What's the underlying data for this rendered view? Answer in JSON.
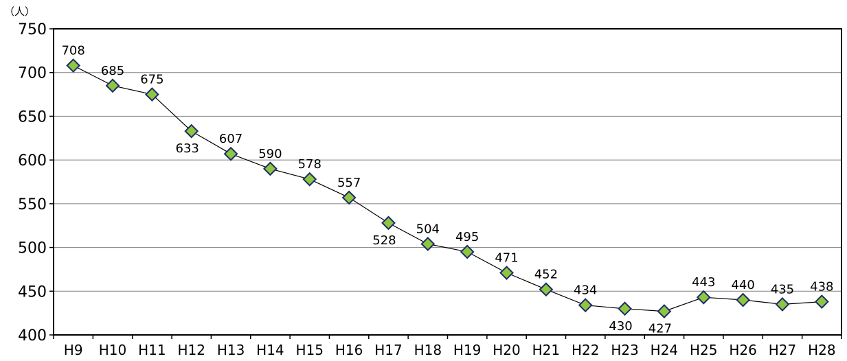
{
  "chart_data": {
    "type": "line",
    "unit_label": "（人）",
    "categories": [
      "H9",
      "H10",
      "H11",
      "H12",
      "H13",
      "H14",
      "H15",
      "H16",
      "H17",
      "H18",
      "H19",
      "H20",
      "H21",
      "H22",
      "H23",
      "H24",
      "H25",
      "H26",
      "H27",
      "H28"
    ],
    "series": [
      {
        "values": [
          708,
          685,
          675,
          633,
          607,
          590,
          578,
          557,
          528,
          504,
          495,
          471,
          452,
          434,
          430,
          427,
          443,
          440,
          435,
          438
        ]
      }
    ],
    "ylim": [
      400,
      750
    ],
    "yticks": [
      400,
      450,
      500,
      550,
      600,
      650,
      700,
      750
    ],
    "label_position": [
      "above",
      "above",
      "above",
      "below",
      "above",
      "above",
      "above",
      "above",
      "below",
      "above",
      "above",
      "above",
      "above",
      "above",
      "below",
      "below",
      "above",
      "above",
      "above",
      "above"
    ],
    "grid": true,
    "legend": "none",
    "colors": {
      "marker_fill": "#8DC63F",
      "marker_stroke": "#1F2A6B",
      "line": "#000000",
      "grid": "#808080"
    }
  }
}
